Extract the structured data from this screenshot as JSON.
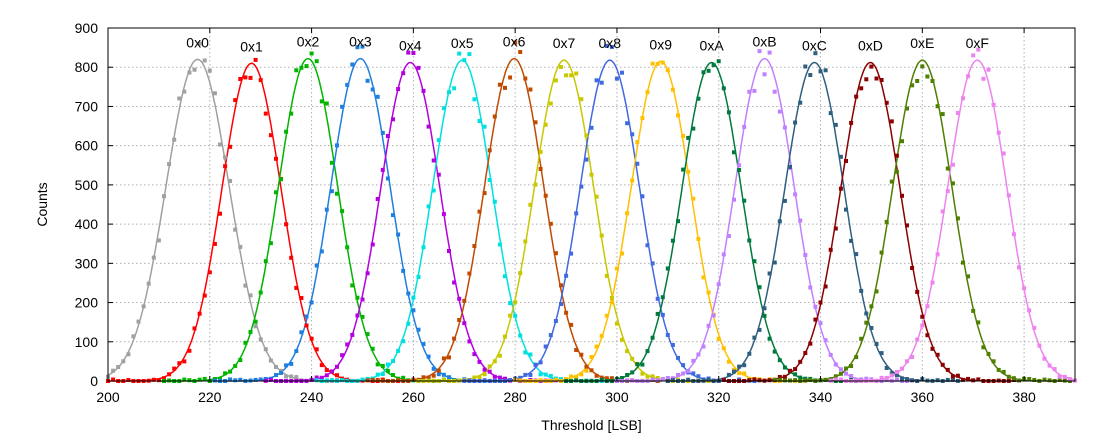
{
  "chart_data": {
    "type": "scatter",
    "title": "",
    "xlabel": "Threshold [LSB]",
    "ylabel": "Counts",
    "xlim": [
      200,
      390
    ],
    "ylim": [
      0,
      900
    ],
    "x_ticks": [
      "200",
      "220",
      "240",
      "260",
      "280",
      "300",
      "320",
      "340",
      "360",
      "380"
    ],
    "y_ticks": [
      "0",
      "100",
      "200",
      "300",
      "400",
      "500",
      "600",
      "700",
      "800",
      "900"
    ],
    "grid": true,
    "legend": "none",
    "series_style": "points with fitted gaussian curve",
    "series": [
      {
        "label": "0x0",
        "mean": 217.6,
        "sigma": 6.2,
        "amplitude": 820,
        "color": "#a0a0a0"
      },
      {
        "label": "0x1",
        "mean": 228.2,
        "sigma": 5.8,
        "amplitude": 810,
        "color": "#ff0000"
      },
      {
        "label": "0x2",
        "mean": 239.3,
        "sigma": 5.8,
        "amplitude": 822,
        "color": "#00b400"
      },
      {
        "label": "0x3",
        "mean": 249.6,
        "sigma": 5.8,
        "amplitude": 822,
        "color": "#1e7fe0"
      },
      {
        "label": "0x4",
        "mean": 259.4,
        "sigma": 5.8,
        "amplitude": 812,
        "color": "#b400e0"
      },
      {
        "label": "0x5",
        "mean": 269.6,
        "sigma": 5.8,
        "amplitude": 818,
        "color": "#00e0e0"
      },
      {
        "label": "0x6",
        "mean": 279.8,
        "sigma": 5.8,
        "amplitude": 822,
        "color": "#c04a00"
      },
      {
        "label": "0x7",
        "mean": 289.6,
        "sigma": 5.8,
        "amplitude": 818,
        "color": "#c8c800"
      },
      {
        "label": "0x8",
        "mean": 298.6,
        "sigma": 5.8,
        "amplitude": 818,
        "color": "#4169e1"
      },
      {
        "label": "0x9",
        "mean": 308.6,
        "sigma": 5.8,
        "amplitude": 815,
        "color": "#ffc000"
      },
      {
        "label": "0xA",
        "mean": 318.6,
        "sigma": 5.8,
        "amplitude": 812,
        "color": "#007a3d"
      },
      {
        "label": "0xB",
        "mean": 329.0,
        "sigma": 5.8,
        "amplitude": 822,
        "color": "#c080ff"
      },
      {
        "label": "0xC",
        "mean": 338.8,
        "sigma": 5.8,
        "amplitude": 812,
        "color": "#2f5f7f"
      },
      {
        "label": "0xD",
        "mean": 349.8,
        "sigma": 5.8,
        "amplitude": 812,
        "color": "#8b0000"
      },
      {
        "label": "0xE",
        "mean": 360.0,
        "sigma": 5.8,
        "amplitude": 818,
        "color": "#4f7f00"
      },
      {
        "label": "0xF",
        "mean": 370.8,
        "sigma": 5.8,
        "amplitude": 818,
        "color": "#ee82ee"
      }
    ]
  }
}
